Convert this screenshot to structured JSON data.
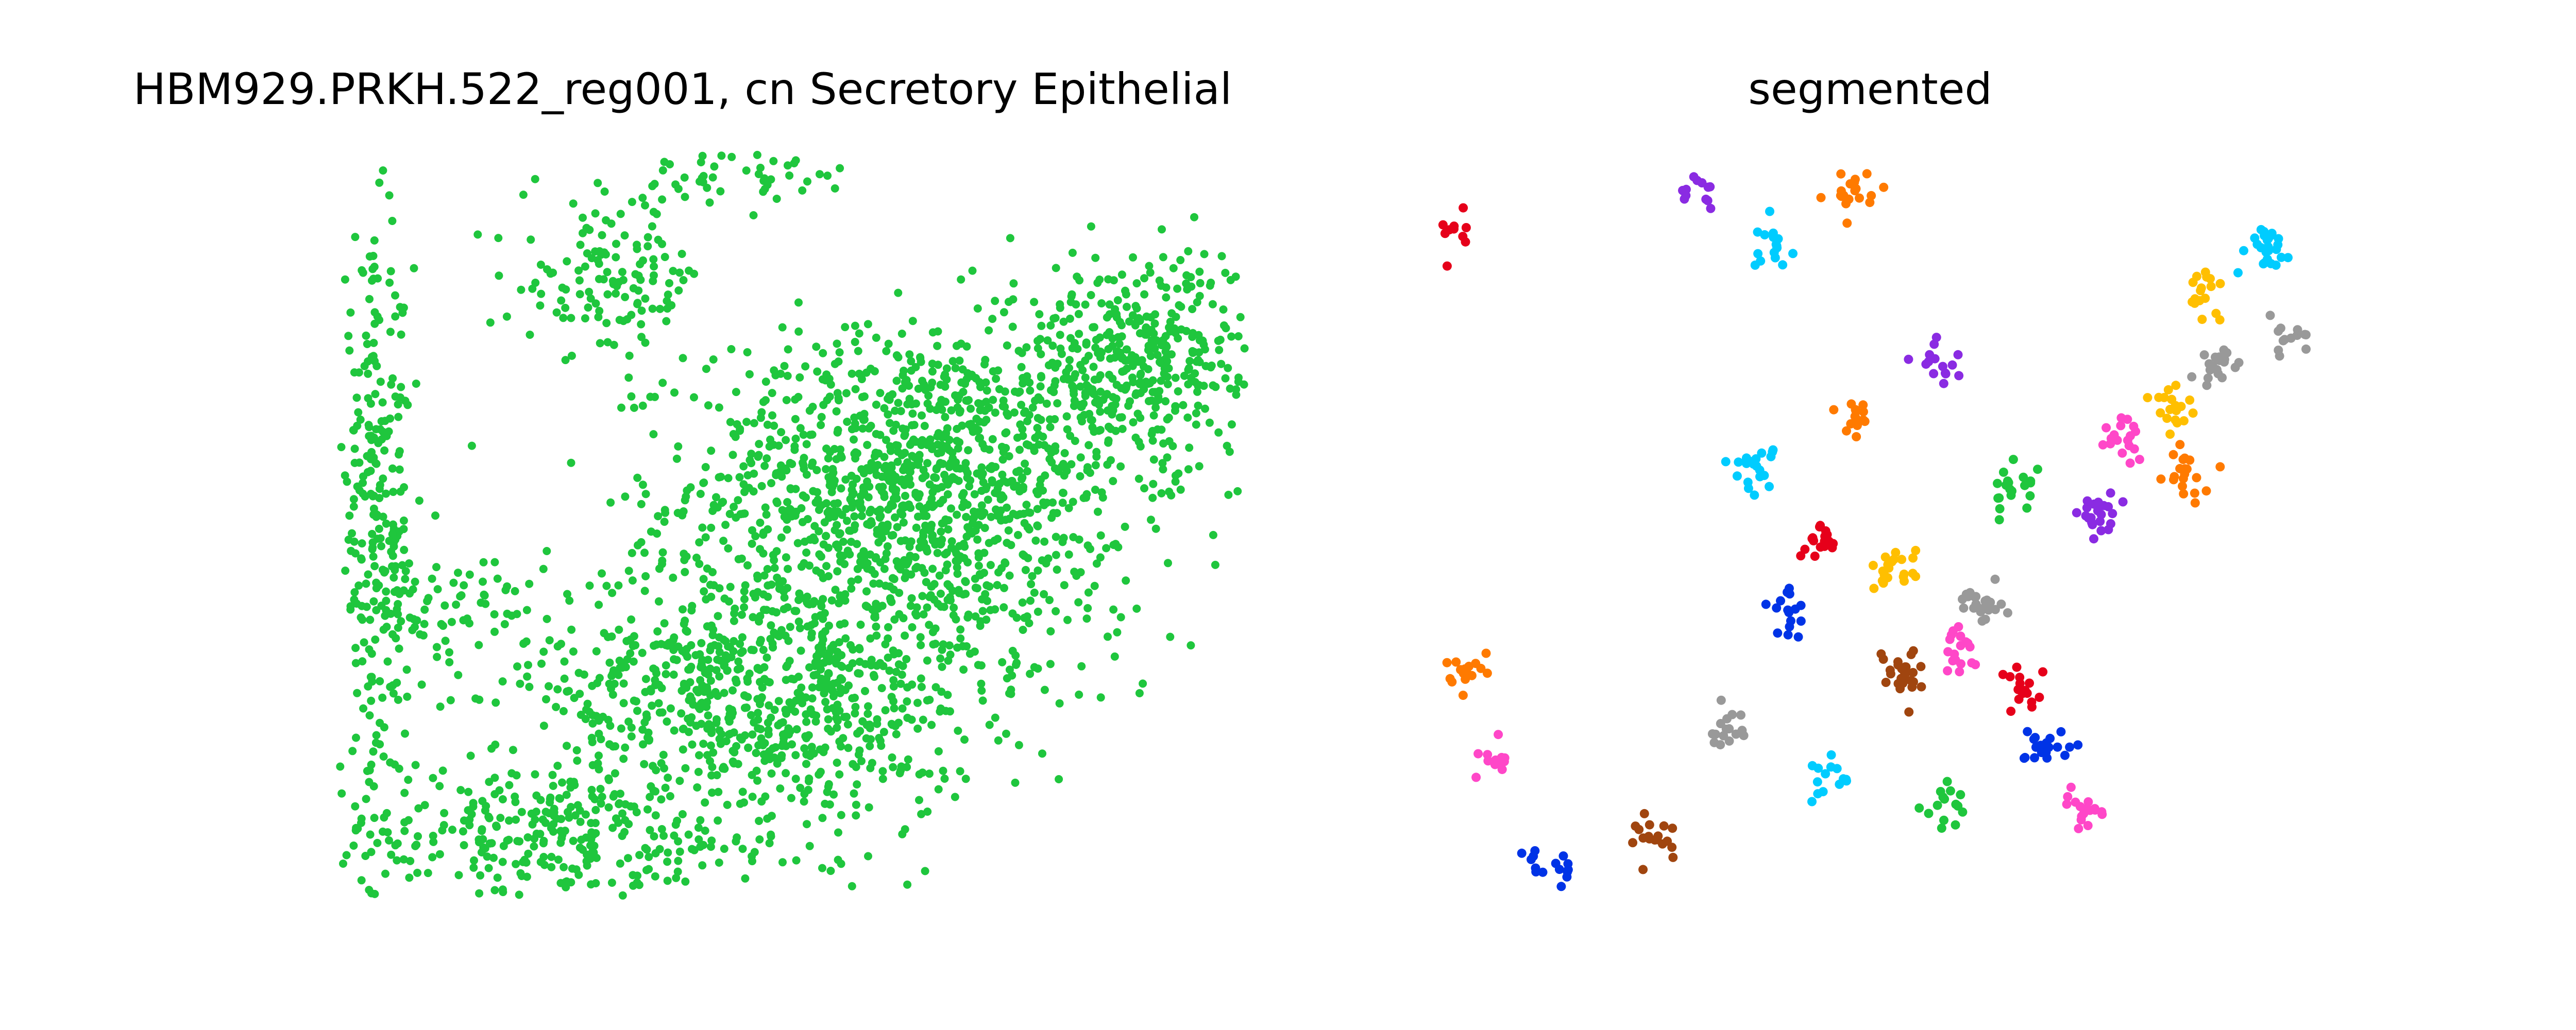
{
  "chart_data": [
    {
      "type": "scatter",
      "title": "HBM929.PRKH.522_reg001, cn Secretory Epithelial",
      "xlabel": "",
      "ylabel": "",
      "axes_visible": false,
      "xlim": [
        0,
        100
      ],
      "ylim": [
        0,
        100
      ],
      "marker_color": "#1fc63d",
      "clusters": [
        {
          "cx": 63,
          "cy": 56,
          "sx": 12,
          "sy": 10,
          "n": 1100
        },
        {
          "cx": 47,
          "cy": 28,
          "sx": 12,
          "sy": 10,
          "n": 900
        },
        {
          "cx": 22,
          "cy": 8,
          "sx": 12,
          "sy": 5,
          "n": 300
        },
        {
          "cx": 88,
          "cy": 72,
          "sx": 9,
          "sy": 7,
          "n": 450
        },
        {
          "cx": 4,
          "cy": 50,
          "sx": 2,
          "sy": 18,
          "n": 260
        },
        {
          "cx": 30,
          "cy": 83,
          "sx": 5,
          "sy": 5,
          "n": 130
        },
        {
          "cx": 42,
          "cy": 97,
          "sx": 9,
          "sy": 2,
          "n": 50
        },
        {
          "cx": 73,
          "cy": 38,
          "sx": 8,
          "sy": 8,
          "n": 90
        },
        {
          "cx": 12,
          "cy": 38,
          "sx": 5,
          "sy": 5,
          "n": 80
        }
      ]
    },
    {
      "type": "scatter",
      "title": "segmented",
      "xlabel": "",
      "ylabel": "",
      "axes_visible": false,
      "xlim": [
        0,
        100
      ],
      "ylim": [
        0,
        100
      ],
      "palette": [
        "#e6001a",
        "#1fc63d",
        "#0033e6",
        "#ffbf00",
        "#00ccff",
        "#ff7a00",
        "#8a2be2",
        "#ff47c8",
        "#999999",
        "#a0450f"
      ],
      "segments": [
        {
          "cx": 1,
          "cy": 90,
          "n": 14,
          "c": 0
        },
        {
          "cx": 36,
          "cy": 58,
          "n": 20,
          "c": 4
        },
        {
          "cx": 88,
          "cy": 81,
          "n": 18,
          "c": 3
        },
        {
          "cx": 95,
          "cy": 88,
          "n": 25,
          "c": 4
        },
        {
          "cx": 53,
          "cy": 30,
          "n": 28,
          "c": 9
        },
        {
          "cx": 62,
          "cy": 40,
          "n": 22,
          "c": 8
        },
        {
          "cx": 70,
          "cy": 20,
          "n": 20,
          "c": 2
        },
        {
          "cx": 79,
          "cy": 62,
          "n": 18,
          "c": 7
        },
        {
          "cx": 48,
          "cy": 64,
          "n": 16,
          "c": 5
        },
        {
          "cx": 66,
          "cy": 55,
          "n": 20,
          "c": 1
        },
        {
          "cx": 57,
          "cy": 72,
          "n": 15,
          "c": 6
        },
        {
          "cx": 44,
          "cy": 47,
          "n": 18,
          "c": 0
        },
        {
          "cx": 74,
          "cy": 12,
          "n": 18,
          "c": 7
        },
        {
          "cx": 25,
          "cy": 8,
          "n": 18,
          "c": 9
        },
        {
          "cx": 12,
          "cy": 4,
          "n": 15,
          "c": 2
        },
        {
          "cx": 3,
          "cy": 30,
          "n": 18,
          "c": 5
        },
        {
          "cx": 38,
          "cy": 88,
          "n": 16,
          "c": 4
        },
        {
          "cx": 47,
          "cy": 95,
          "n": 20,
          "c": 5
        },
        {
          "cx": 30,
          "cy": 94,
          "n": 12,
          "c": 6
        },
        {
          "cx": 52,
          "cy": 44,
          "n": 22,
          "c": 3
        },
        {
          "cx": 60,
          "cy": 33,
          "n": 20,
          "c": 7
        },
        {
          "cx": 67,
          "cy": 28,
          "n": 16,
          "c": 0
        },
        {
          "cx": 40,
          "cy": 38,
          "n": 16,
          "c": 2
        },
        {
          "cx": 90,
          "cy": 72,
          "n": 20,
          "c": 8
        },
        {
          "cx": 84,
          "cy": 66,
          "n": 18,
          "c": 3
        },
        {
          "cx": 76,
          "cy": 51,
          "n": 22,
          "c": 6
        },
        {
          "cx": 33,
          "cy": 22,
          "n": 16,
          "c": 8
        },
        {
          "cx": 58,
          "cy": 12,
          "n": 15,
          "c": 1
        },
        {
          "cx": 44,
          "cy": 16,
          "n": 14,
          "c": 4
        },
        {
          "cx": 6,
          "cy": 18,
          "n": 12,
          "c": 7
        },
        {
          "cx": 86,
          "cy": 57,
          "n": 20,
          "c": 5
        },
        {
          "cx": 98,
          "cy": 75,
          "n": 14,
          "c": 8
        }
      ]
    }
  ]
}
